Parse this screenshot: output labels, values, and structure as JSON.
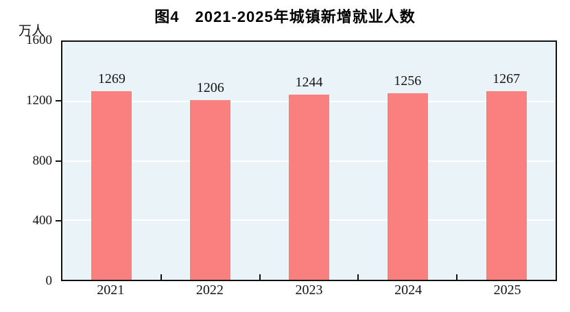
{
  "chart_data": {
    "type": "bar",
    "title": "图4　2021-2025年城镇新增就业人数",
    "unit_label": "万人",
    "categories": [
      "2021",
      "2022",
      "2023",
      "2024",
      "2025"
    ],
    "values": [
      1269,
      1206,
      1244,
      1256,
      1267
    ],
    "ylim": [
      0,
      1600
    ],
    "yticks": [
      0,
      400,
      800,
      1200,
      1600
    ],
    "grid": "horizontal",
    "legend": "none",
    "colors": {
      "bar_fill": "#FA8080",
      "plot_background": "#EAF3F8",
      "grid_line": "#FFFFFF",
      "axis_line": "#101010",
      "text": "#141414"
    }
  }
}
